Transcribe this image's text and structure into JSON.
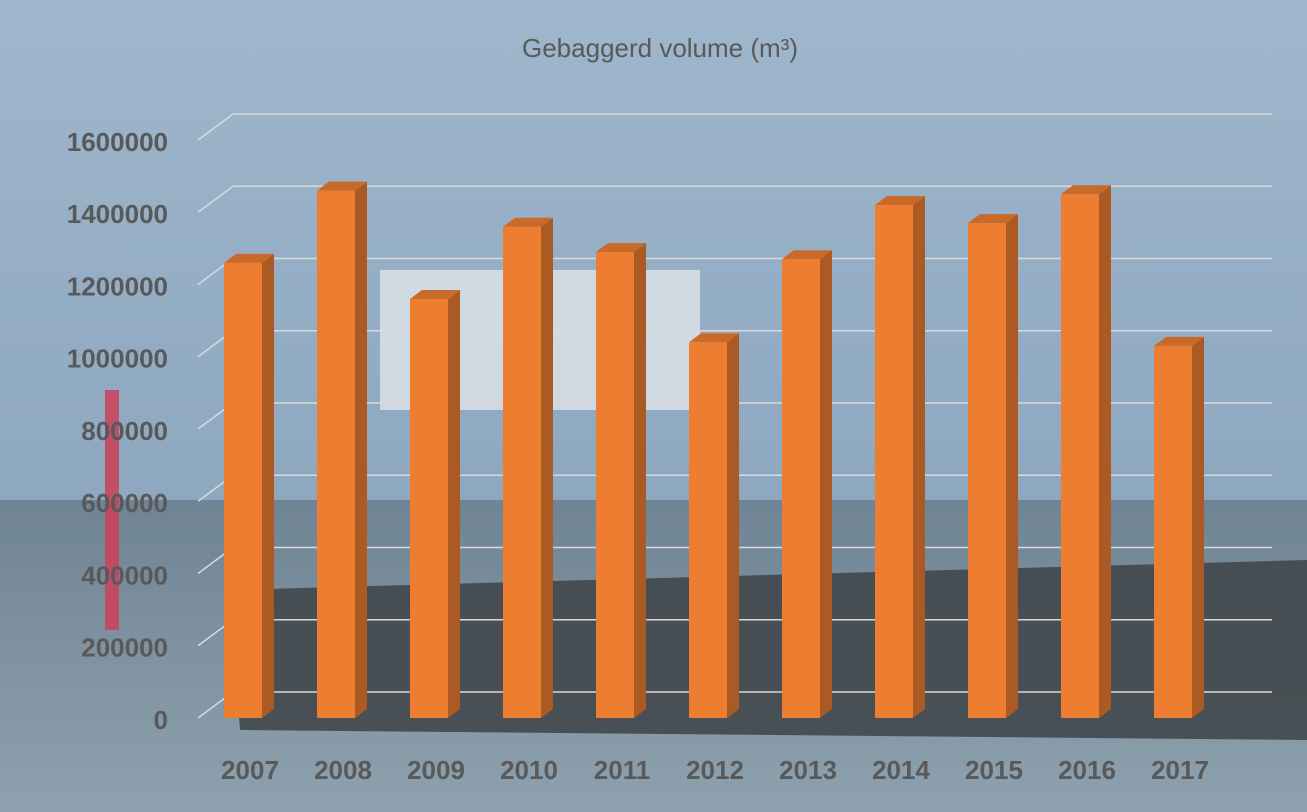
{
  "chart_data": {
    "type": "bar",
    "title": "Gebaggerd volume (m³)",
    "categories": [
      "2007",
      "2008",
      "2009",
      "2010",
      "2011",
      "2012",
      "2013",
      "2014",
      "2015",
      "2016",
      "2017"
    ],
    "values": [
      1260000,
      1460000,
      1160000,
      1360000,
      1290000,
      1040000,
      1270000,
      1420000,
      1370000,
      1450000,
      1030000
    ],
    "color": "#ed7d31",
    "ylim": [
      0,
      1600000
    ],
    "yticks": [
      0,
      200000,
      400000,
      600000,
      800000,
      1000000,
      1200000,
      1400000,
      1600000
    ],
    "grid": true
  }
}
